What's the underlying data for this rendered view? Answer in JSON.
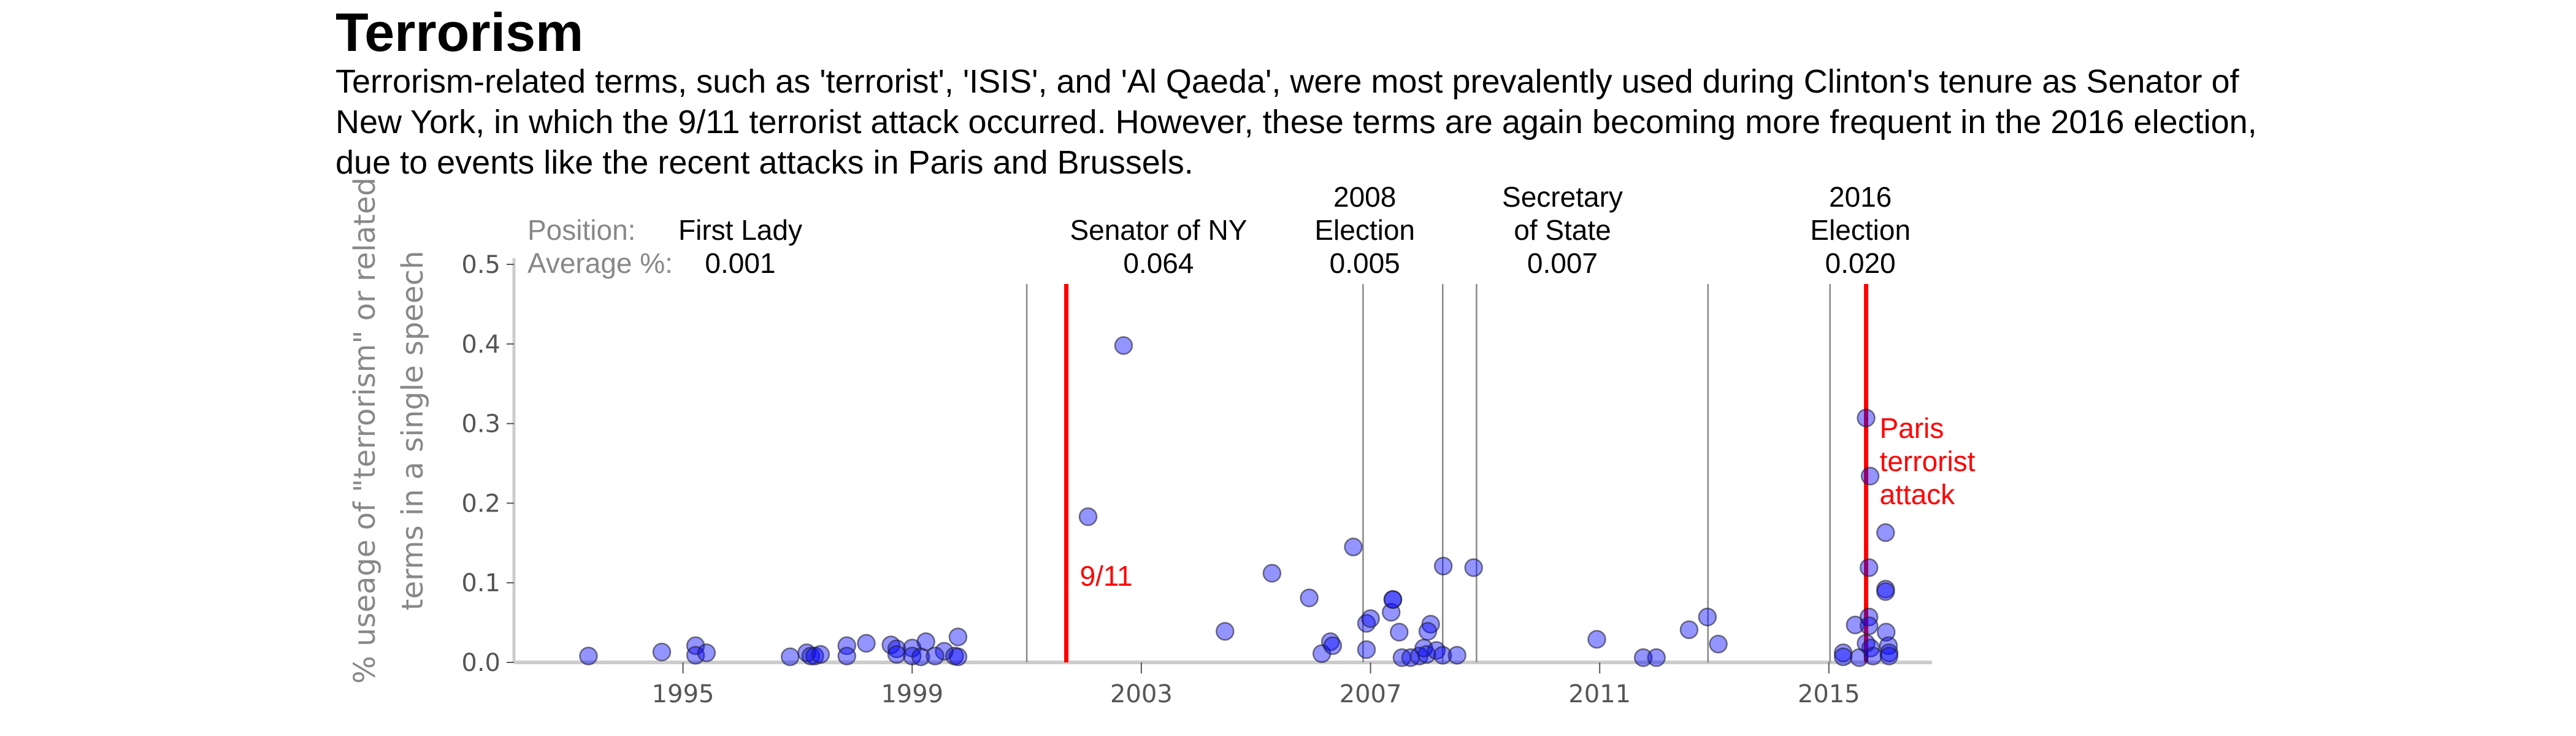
{
  "title": "Terrorism",
  "description": "Terrorism-related terms, such as 'terrorist', 'ISIS', and 'Al Qaeda', were most prevalently used during Clinton's tenure as Senator of New York, in which the 9/11 terrorist attack occurred. However, these terms are again becoming more frequent in the 2016 election, due to events like the recent attacks in Paris and Brussels.",
  "chart_data": {
    "type": "scatter",
    "ylabel": [
      "% useage of \"terrorism\" or related",
      "terms in a single speech"
    ],
    "xlabel": "",
    "xlim": [
      1992.05,
      2016.8
    ],
    "ylim": [
      0,
      0.5
    ],
    "xticks": [
      1995,
      1999,
      2003,
      2007,
      2011,
      2015
    ],
    "yticks": [
      "0.0",
      "0.1",
      "0.2",
      "0.3",
      "0.4",
      "0.5"
    ],
    "grid": false,
    "point_color": "#0000ff",
    "header_labels": {
      "position": "Position:",
      "average": "Average %:"
    },
    "periods": [
      {
        "name": [
          "First Lady"
        ],
        "average": "0.001",
        "center": 1996.0
      },
      {
        "name": [
          "Senator of NY"
        ],
        "average": "0.064",
        "center": 2003.3
      },
      {
        "name": [
          "2008",
          "Election"
        ],
        "average": "0.005",
        "center": 2006.9
      },
      {
        "name": [
          "Secretary",
          "of State"
        ],
        "average": "0.007",
        "center": 2010.35
      },
      {
        "name": [
          "2016",
          "Election"
        ],
        "average": "0.020",
        "center": 2015.55
      }
    ],
    "period_boundaries": [
      2001.0,
      2006.87,
      2008.26,
      2008.85,
      2012.89,
      2015.02
    ],
    "events": [
      {
        "label": [
          "9/11"
        ],
        "x": 2001.69,
        "color": "#ff0000"
      },
      {
        "label": [
          "Paris",
          "terrorist",
          "attack"
        ],
        "x": 2015.65,
        "color": "#ff0000"
      }
    ],
    "points": [
      [
        1993.35,
        0.008
      ],
      [
        1994.63,
        0.013
      ],
      [
        1995.22,
        0.021
      ],
      [
        1995.22,
        0.009
      ],
      [
        1995.41,
        0.012
      ],
      [
        1996.87,
        0.007
      ],
      [
        1997.16,
        0.012
      ],
      [
        1997.23,
        0.008
      ],
      [
        1997.3,
        0.008
      ],
      [
        1997.4,
        0.01
      ],
      [
        1997.86,
        0.021
      ],
      [
        1997.86,
        0.008
      ],
      [
        1998.2,
        0.024
      ],
      [
        1998.63,
        0.022
      ],
      [
        1998.73,
        0.017
      ],
      [
        1998.73,
        0.01
      ],
      [
        1999.0,
        0.018
      ],
      [
        1999.24,
        0.026
      ],
      [
        1999.56,
        0.014
      ],
      [
        1999.8,
        0.032
      ],
      [
        1999.74,
        0.008
      ],
      [
        1999.0,
        0.008
      ],
      [
        1999.15,
        0.007
      ],
      [
        1999.4,
        0.008
      ],
      [
        1999.8,
        0.007
      ],
      [
        2002.07,
        0.183
      ],
      [
        2002.69,
        0.398
      ],
      [
        2004.46,
        0.039
      ],
      [
        2005.28,
        0.112
      ],
      [
        2005.93,
        0.081
      ],
      [
        2006.15,
        0.011
      ],
      [
        2006.3,
        0.026
      ],
      [
        2006.34,
        0.021
      ],
      [
        2006.7,
        0.145
      ],
      [
        2006.93,
        0.016
      ],
      [
        2006.93,
        0.049
      ],
      [
        2007.0,
        0.055
      ],
      [
        2007.36,
        0.063
      ],
      [
        2007.39,
        0.079
      ],
      [
        2007.39,
        0.079
      ],
      [
        2007.5,
        0.038
      ],
      [
        2007.55,
        0.006
      ],
      [
        2007.7,
        0.006
      ],
      [
        2007.85,
        0.008
      ],
      [
        2007.93,
        0.018
      ],
      [
        2007.98,
        0.01
      ],
      [
        2008.05,
        0.048
      ],
      [
        2008.0,
        0.039
      ],
      [
        2008.15,
        0.015
      ],
      [
        2008.26,
        0.009
      ],
      [
        2008.27,
        0.121
      ],
      [
        2008.51,
        0.009
      ],
      [
        2008.8,
        0.119
      ],
      [
        2010.95,
        0.029
      ],
      [
        2011.76,
        0.006
      ],
      [
        2011.99,
        0.006
      ],
      [
        2012.56,
        0.041
      ],
      [
        2012.88,
        0.057
      ],
      [
        2013.07,
        0.023
      ],
      [
        2015.25,
        0.012
      ],
      [
        2015.25,
        0.007
      ],
      [
        2015.46,
        0.047
      ],
      [
        2015.53,
        0.006
      ],
      [
        2015.65,
        0.307
      ],
      [
        2015.7,
        0.119
      ],
      [
        2015.7,
        0.057
      ],
      [
        2015.7,
        0.046
      ],
      [
        2015.65,
        0.024
      ],
      [
        2015.73,
        0.018
      ],
      [
        2015.72,
        0.234
      ],
      [
        2015.77,
        0.008
      ],
      [
        2015.99,
        0.163
      ],
      [
        2015.99,
        0.092
      ],
      [
        2015.99,
        0.089
      ],
      [
        2016.0,
        0.038
      ],
      [
        2016.04,
        0.021
      ],
      [
        2016.05,
        0.012
      ],
      [
        2016.05,
        0.008
      ]
    ]
  }
}
